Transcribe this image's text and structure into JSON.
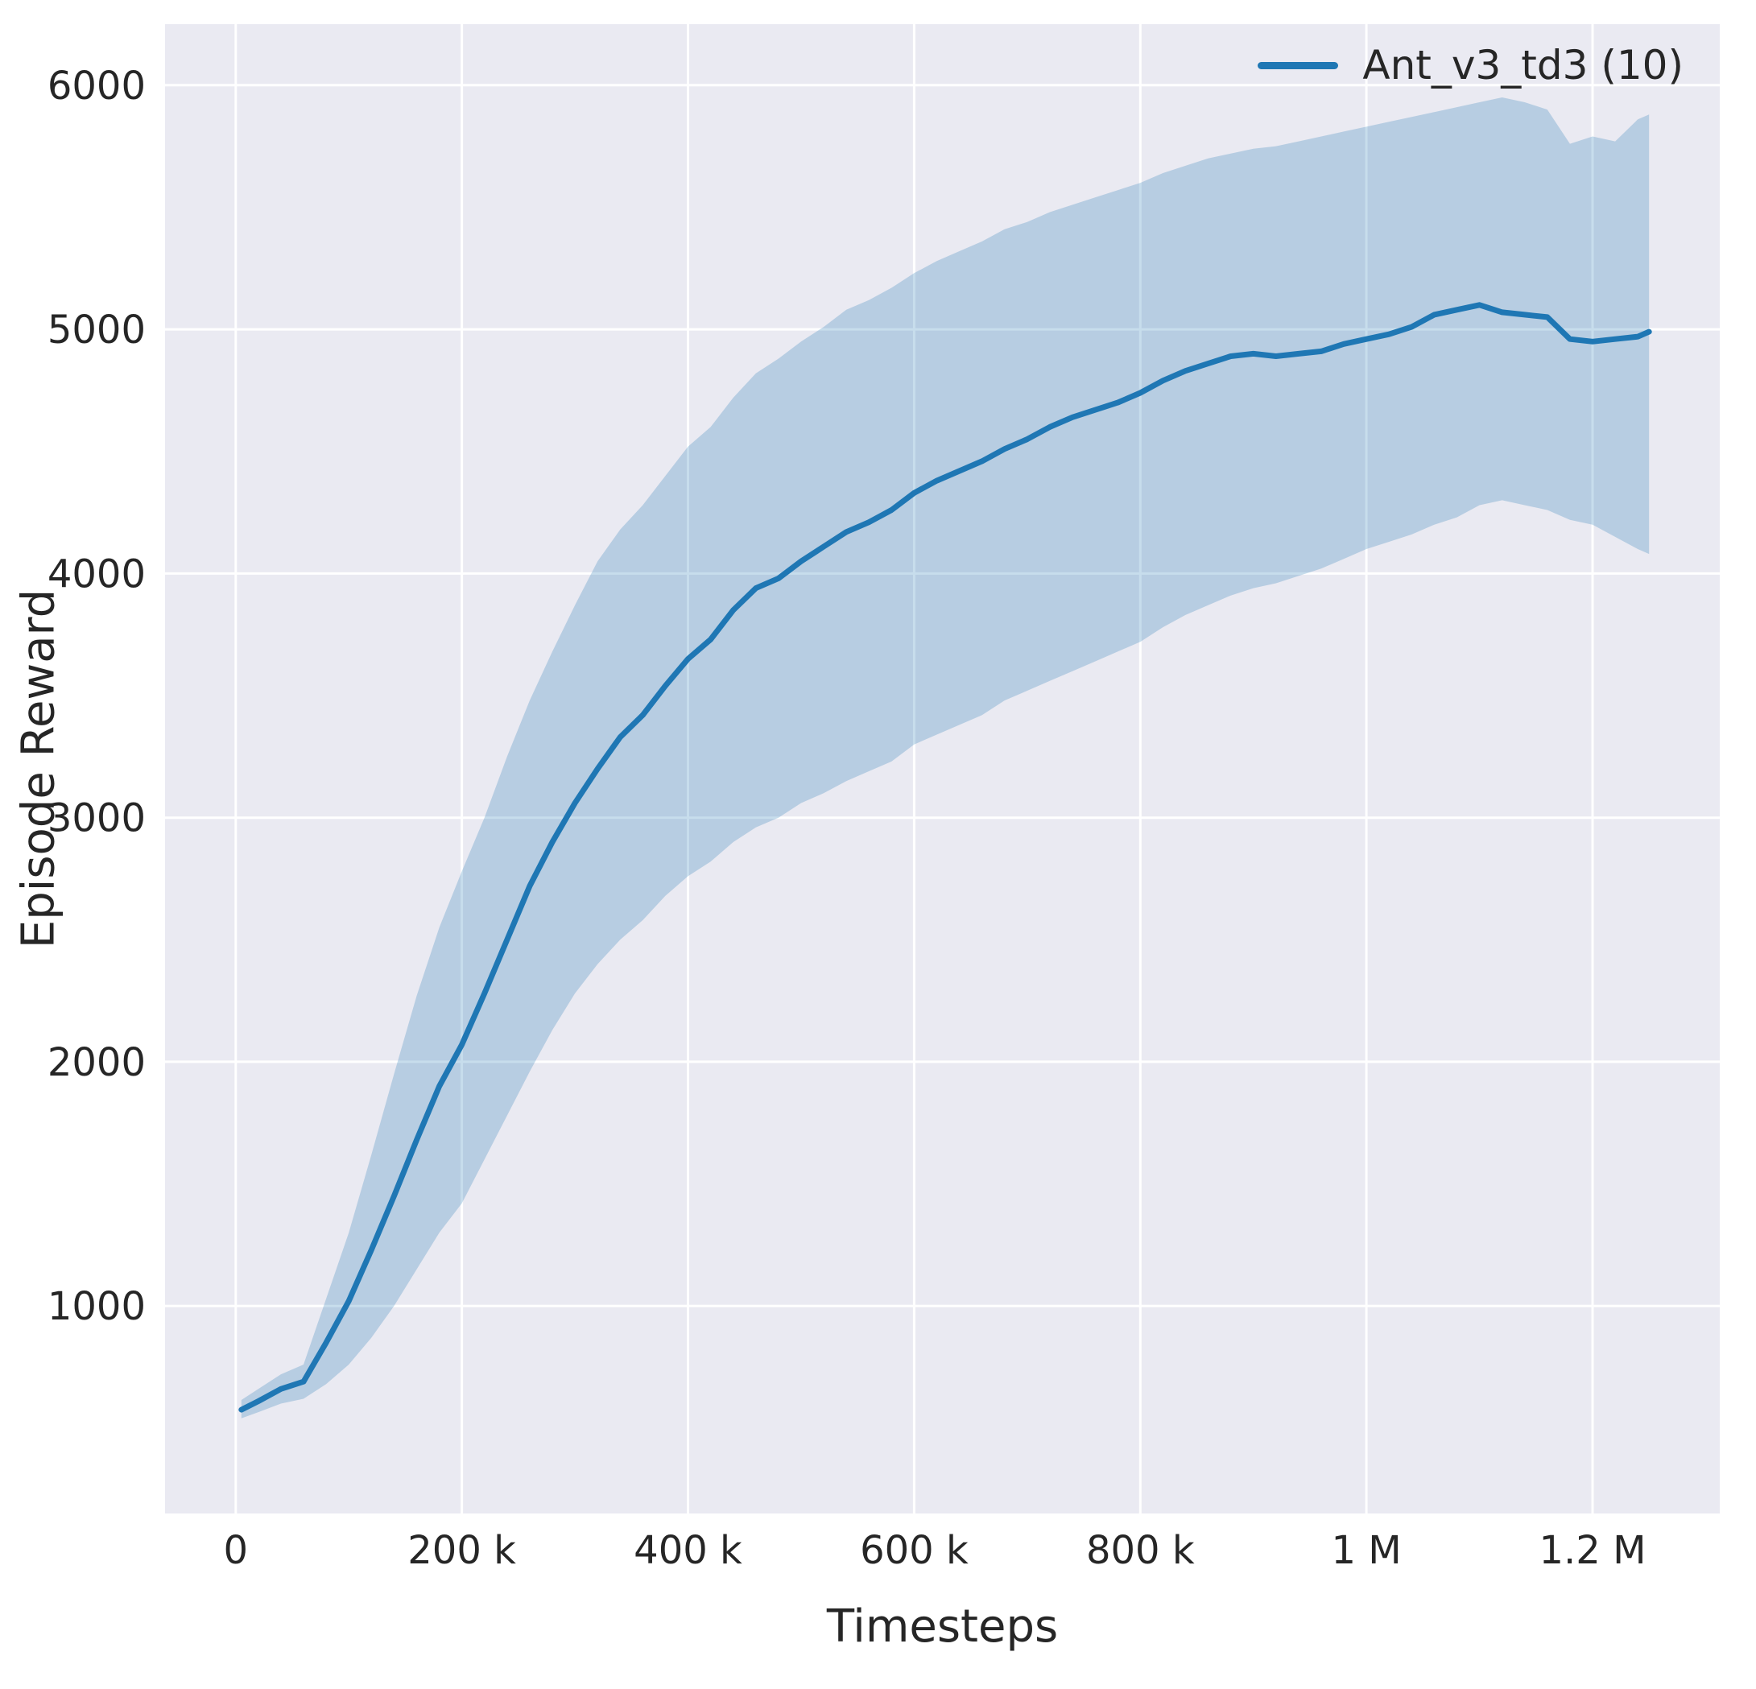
{
  "chart_data": {
    "type": "line",
    "title": "",
    "xlabel": "Timesteps",
    "ylabel": "Episode Reward",
    "legend": {
      "position": "upper right",
      "entries": [
        "Ant_v3_td3 (10)"
      ]
    },
    "grid": true,
    "xlim": [
      -62500,
      1312500
    ],
    "ylim": [
      150,
      6250
    ],
    "xticks": {
      "values": [
        0,
        200000,
        400000,
        600000,
        800000,
        1000000,
        1200000
      ],
      "labels": [
        "0",
        "200 k",
        "400 k",
        "600 k",
        "800 k",
        "1 M",
        "1.2 M"
      ]
    },
    "yticks": {
      "values": [
        1000,
        2000,
        3000,
        4000,
        5000,
        6000
      ],
      "labels": [
        "1000",
        "2000",
        "3000",
        "4000",
        "5000",
        "6000"
      ]
    },
    "colors": {
      "line": "#1f77b4",
      "band": "#1f77b4",
      "plot_bg": "#eaeaf2",
      "grid": "#ffffff",
      "text": "#262626"
    },
    "band_opacity": 0.25,
    "series": [
      {
        "name": "Ant_v3_td3 (10)",
        "x": [
          5000,
          20000,
          40000,
          60000,
          80000,
          100000,
          120000,
          140000,
          160000,
          180000,
          200000,
          220000,
          240000,
          260000,
          280000,
          300000,
          320000,
          340000,
          360000,
          380000,
          400000,
          420000,
          440000,
          460000,
          480000,
          500000,
          520000,
          540000,
          560000,
          580000,
          600000,
          620000,
          640000,
          660000,
          680000,
          700000,
          720000,
          740000,
          760000,
          780000,
          800000,
          820000,
          840000,
          860000,
          880000,
          900000,
          920000,
          940000,
          960000,
          980000,
          1000000,
          1020000,
          1040000,
          1060000,
          1080000,
          1100000,
          1120000,
          1140000,
          1160000,
          1180000,
          1200000,
          1220000,
          1240000,
          1250000
        ],
        "mean": [
          575,
          610,
          660,
          690,
          850,
          1020,
          1230,
          1450,
          1680,
          1900,
          2070,
          2280,
          2500,
          2720,
          2900,
          3060,
          3200,
          3330,
          3420,
          3540,
          3650,
          3730,
          3850,
          3940,
          3980,
          4050,
          4110,
          4170,
          4210,
          4260,
          4330,
          4380,
          4420,
          4460,
          4510,
          4550,
          4600,
          4640,
          4670,
          4700,
          4740,
          4790,
          4830,
          4860,
          4890,
          4900,
          4890,
          4900,
          4910,
          4940,
          4960,
          4980,
          5010,
          5060,
          5080,
          5100,
          5070,
          5060,
          5050,
          4960,
          4950,
          4960,
          4970,
          4990
        ],
        "lower": [
          540,
          565,
          600,
          620,
          680,
          760,
          870,
          1000,
          1150,
          1300,
          1420,
          1600,
          1780,
          1960,
          2130,
          2280,
          2400,
          2500,
          2580,
          2680,
          2760,
          2820,
          2900,
          2960,
          3000,
          3060,
          3100,
          3150,
          3190,
          3230,
          3300,
          3340,
          3380,
          3420,
          3480,
          3520,
          3560,
          3600,
          3640,
          3680,
          3720,
          3780,
          3830,
          3870,
          3910,
          3940,
          3960,
          3990,
          4020,
          4060,
          4100,
          4130,
          4160,
          4200,
          4230,
          4280,
          4300,
          4280,
          4260,
          4220,
          4200,
          4150,
          4100,
          4080
        ],
        "upper": [
          615,
          660,
          720,
          760,
          1030,
          1300,
          1620,
          1950,
          2270,
          2550,
          2780,
          3000,
          3250,
          3480,
          3680,
          3870,
          4050,
          4180,
          4280,
          4400,
          4520,
          4600,
          4720,
          4820,
          4880,
          4950,
          5010,
          5080,
          5120,
          5170,
          5230,
          5280,
          5320,
          5360,
          5410,
          5440,
          5480,
          5510,
          5540,
          5570,
          5600,
          5640,
          5670,
          5700,
          5720,
          5740,
          5750,
          5770,
          5790,
          5810,
          5830,
          5850,
          5870,
          5890,
          5910,
          5930,
          5950,
          5930,
          5900,
          5760,
          5790,
          5770,
          5860,
          5880
        ]
      }
    ]
  }
}
